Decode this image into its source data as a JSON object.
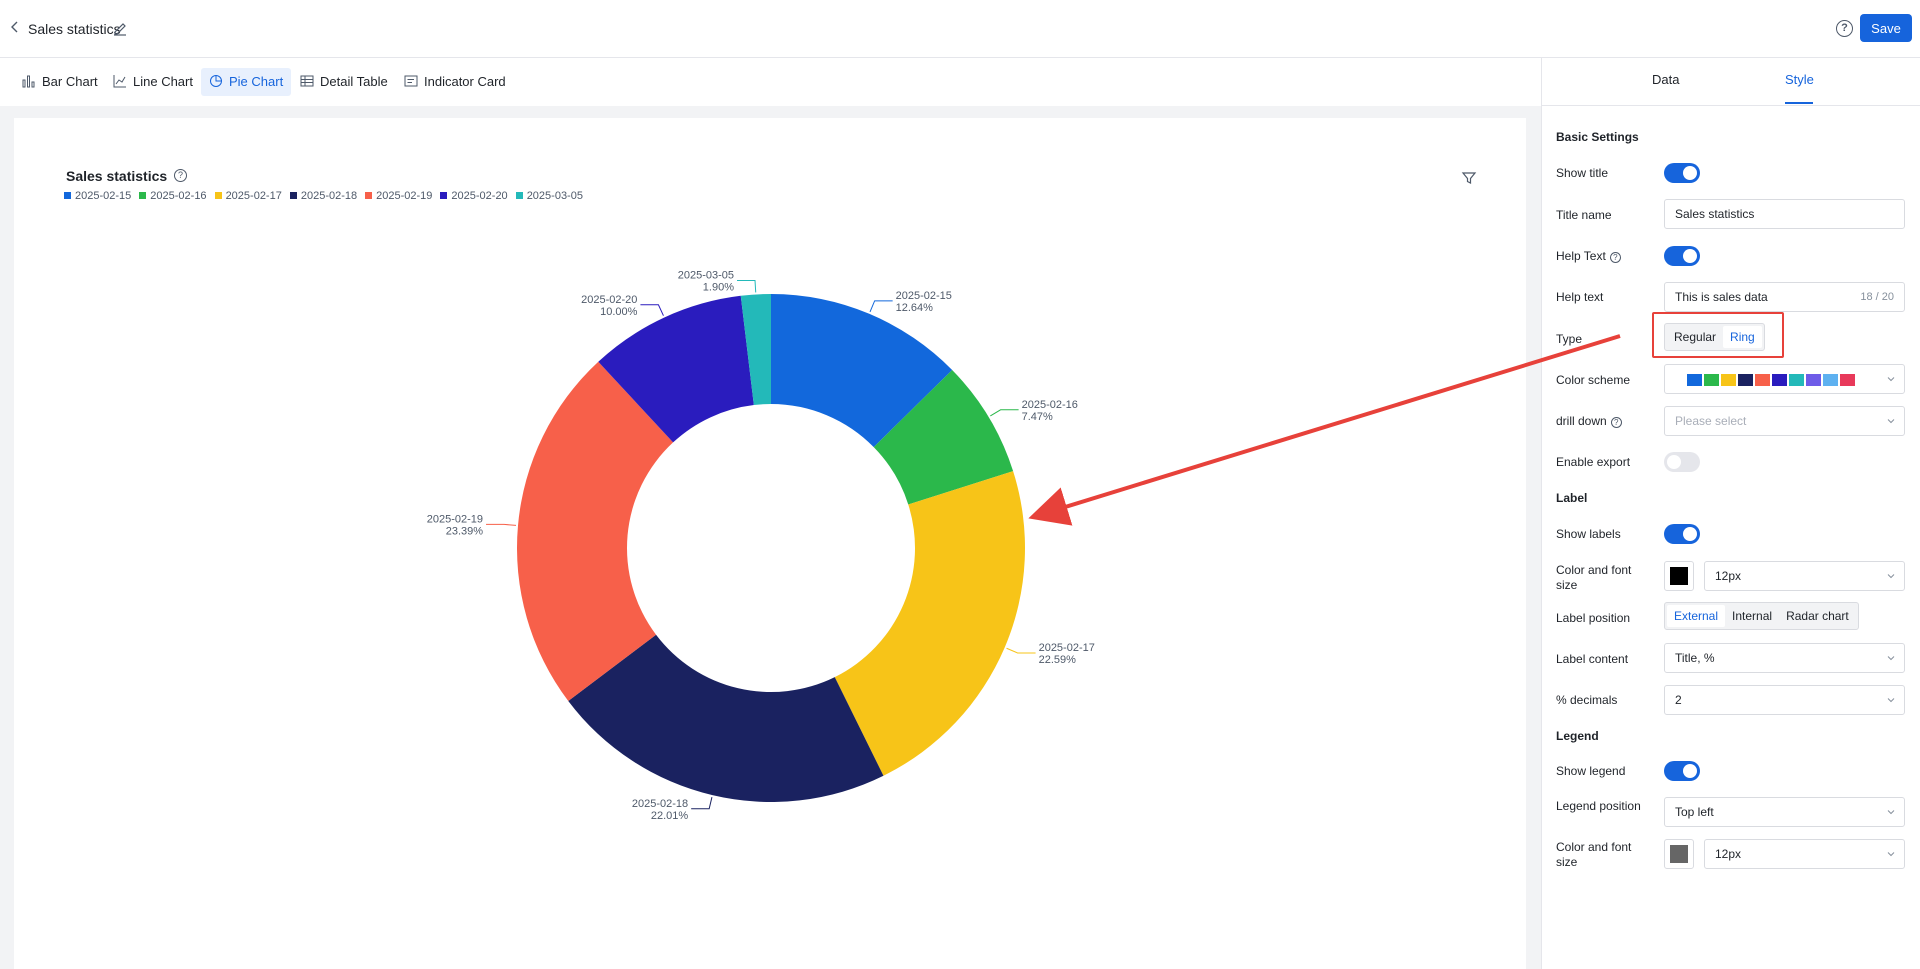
{
  "header": {
    "title": "Sales statistics",
    "save_label": "Save"
  },
  "chart_tabs": [
    {
      "label": "Bar Chart",
      "icon": "bar-chart-icon"
    },
    {
      "label": "Line Chart",
      "icon": "line-chart-icon"
    },
    {
      "label": "Pie Chart",
      "icon": "pie-chart-icon",
      "active": true
    },
    {
      "label": "Detail Table",
      "icon": "table-icon"
    },
    {
      "label": "Indicator Card",
      "icon": "card-icon"
    }
  ],
  "chart_data": {
    "type": "pie",
    "variant": "ring",
    "title": "Sales statistics",
    "legend_position": "top-left",
    "categories": [
      "2025-02-15",
      "2025-02-16",
      "2025-02-17",
      "2025-02-18",
      "2025-02-19",
      "2025-02-20",
      "2025-03-05"
    ],
    "values": [
      12.64,
      7.47,
      22.59,
      22.01,
      23.39,
      10.0,
      1.9
    ],
    "labels": [
      "12.64%",
      "7.47%",
      "22.59%",
      "22.01%",
      "23.39%",
      "10.00%",
      "1.90%"
    ],
    "colors": [
      "#1268dc",
      "#2bb84b",
      "#f7c418",
      "#1a2260",
      "#f7604a",
      "#2a1cbe",
      "#23b9b9"
    ]
  },
  "panel": {
    "tabs": [
      "Data",
      "Style"
    ],
    "active_tab": "Style",
    "basic_settings": {
      "heading": "Basic Settings",
      "show_title_label": "Show title",
      "show_title": true,
      "title_name_label": "Title name",
      "title_name_value": "Sales statistics",
      "help_text_toggle_label": "Help Text",
      "help_text_enabled": true,
      "help_text_label": "Help text",
      "help_text_value": "This is sales data",
      "help_text_counter": "18 / 20",
      "type_label": "Type",
      "type_options": [
        "Regular",
        "Ring"
      ],
      "type_selected": "Ring",
      "color_scheme_label": "Color scheme",
      "color_scheme": [
        "#1268dc",
        "#2bb84b",
        "#f7c418",
        "#1a2260",
        "#f7604a",
        "#2a1cbe",
        "#23b9b9",
        "#6e5ce8",
        "#5eb1f0",
        "#e8395a"
      ],
      "drill_down_label": "drill down",
      "drill_down_placeholder": "Please select",
      "enable_export_label": "Enable export",
      "enable_export": false
    },
    "label_section": {
      "heading": "Label",
      "show_labels_label": "Show labels",
      "show_labels": true,
      "color_font_label": "Color and font size",
      "label_color": "#000000",
      "label_font_size": "12px",
      "label_position_label": "Label position",
      "label_position_options": [
        "External",
        "Internal",
        "Radar chart"
      ],
      "label_position_selected": "External",
      "label_content_label": "Label content",
      "label_content_value": "Title, %",
      "decimals_label": "% decimals",
      "decimals_value": "2"
    },
    "legend_section": {
      "heading": "Legend",
      "show_legend_label": "Show legend",
      "show_legend": true,
      "legend_position_label": "Legend position",
      "legend_position_value": "Top left",
      "color_font_label": "Color and font size",
      "legend_color": "#666666",
      "legend_font_size": "12px"
    }
  }
}
